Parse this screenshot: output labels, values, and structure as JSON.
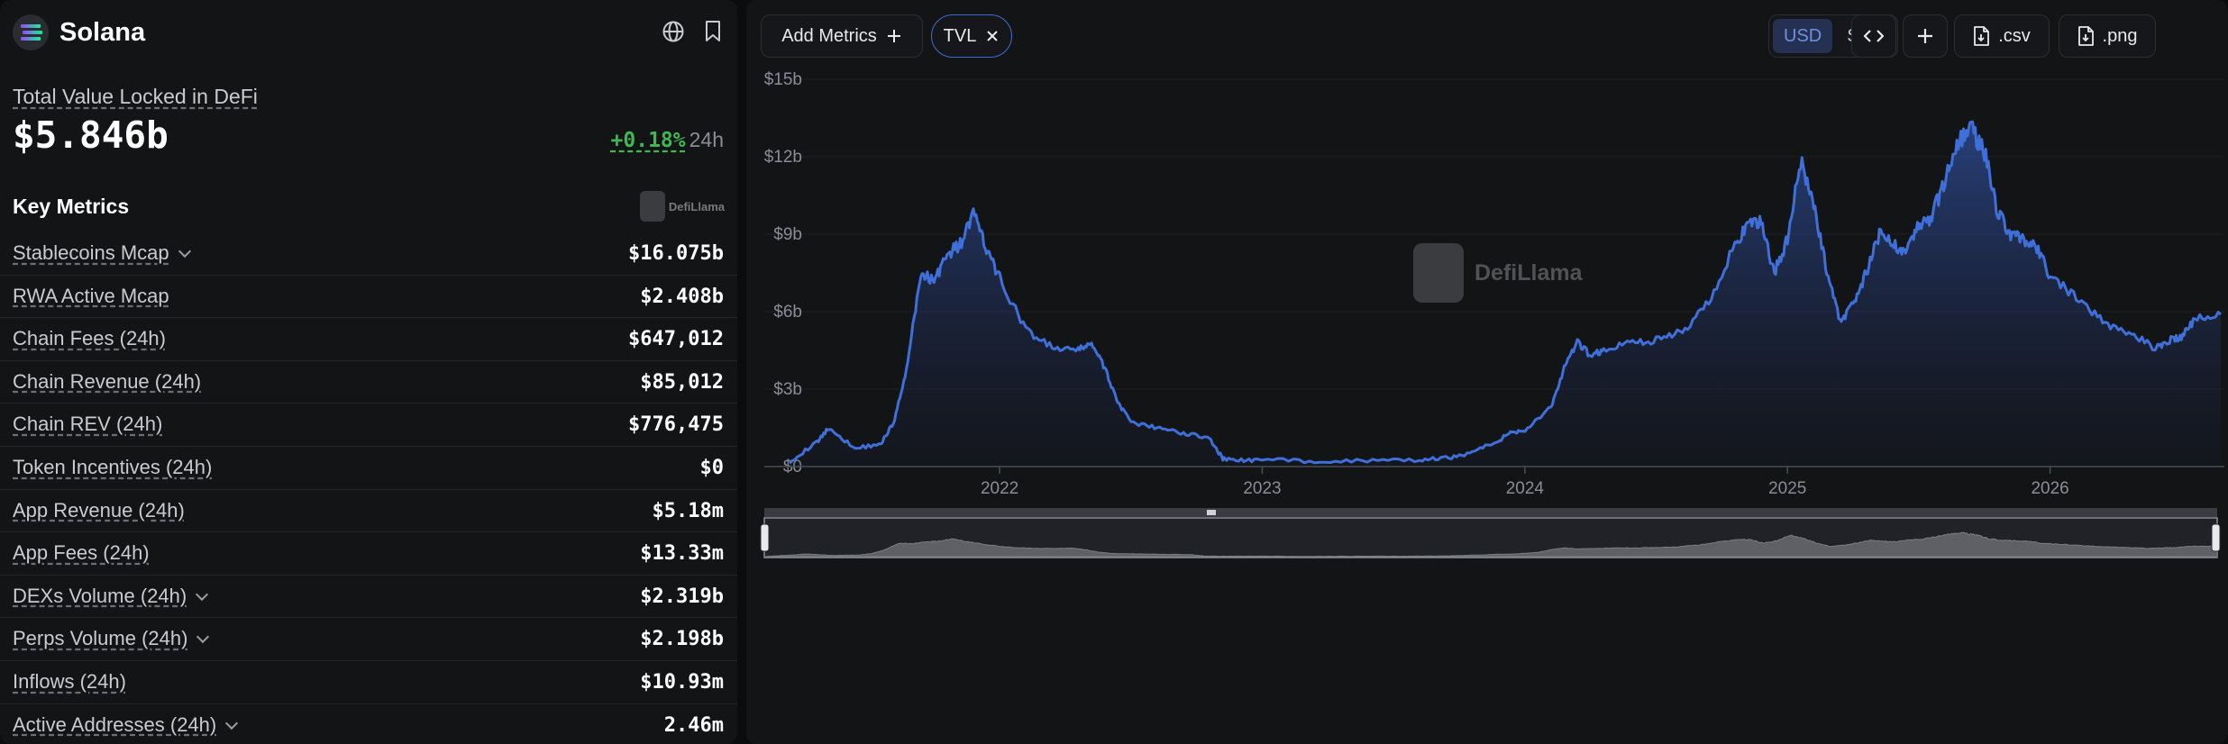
{
  "header": {
    "chain_name": "Solana",
    "globe_icon": "globe-icon",
    "bookmark_icon": "bookmark-icon"
  },
  "tvl": {
    "label": "Total Value Locked in DeFi",
    "value": "$5.846b",
    "change": "+0.18%",
    "period": "24h"
  },
  "key_metrics": {
    "title": "Key Metrics",
    "brand": "DefiLlama",
    "rows": [
      {
        "label": "Stablecoins Mcap",
        "value": "$16.075b",
        "expandable": true
      },
      {
        "label": "RWA Active Mcap",
        "value": "$2.408b",
        "expandable": false
      },
      {
        "label": "Chain Fees (24h)",
        "value": "$647,012",
        "expandable": false
      },
      {
        "label": "Chain Revenue (24h)",
        "value": "$85,012",
        "expandable": false
      },
      {
        "label": "Chain REV (24h)",
        "value": "$776,475",
        "expandable": false
      },
      {
        "label": "Token Incentives (24h)",
        "value": "$0",
        "expandable": false
      },
      {
        "label": "App Revenue (24h)",
        "value": "$5.18m",
        "expandable": false
      },
      {
        "label": "App Fees (24h)",
        "value": "$13.33m",
        "expandable": false
      },
      {
        "label": "DEXs Volume (24h)",
        "value": "$2.319b",
        "expandable": true
      },
      {
        "label": "Perps Volume (24h)",
        "value": "$2.198b",
        "expandable": true
      },
      {
        "label": "Inflows (24h)",
        "value": "$10.93m",
        "expandable": false
      },
      {
        "label": "Active Addresses (24h)",
        "value": "2.46m",
        "expandable": true
      }
    ]
  },
  "toolbar": {
    "add_metrics": "Add Metrics",
    "tvl_chip": "TVL",
    "currency_options": [
      "USD",
      "SOL"
    ],
    "currency_selected": "USD",
    "embed_icon": "code-icon",
    "plus_icon": "plus-icon",
    "csv": ".csv",
    "png": ".png"
  },
  "watermark": "DefiLlama",
  "colors": {
    "line": "#3f6fd8",
    "accent": "#3d6bd6",
    "positive": "#3fb84f",
    "background": "#131416"
  },
  "chart_data": {
    "type": "area",
    "series": [
      {
        "name": "TVL"
      }
    ],
    "y_ticks": [
      "$0",
      "$3b",
      "$6b",
      "$9b",
      "$12b",
      "$15b"
    ],
    "x_ticks": [
      "2022",
      "2023",
      "2024",
      "2025",
      "2026"
    ],
    "ylim": [
      0,
      15
    ],
    "x": [
      2021.2,
      2021.3,
      2021.35,
      2021.45,
      2021.55,
      2021.6,
      2021.65,
      2021.7,
      2021.75,
      2021.8,
      2021.85,
      2021.9,
      2021.95,
      2022.0,
      2022.1,
      2022.2,
      2022.3,
      2022.35,
      2022.4,
      2022.45,
      2022.5,
      2022.6,
      2022.7,
      2022.8,
      2022.85,
      2022.9,
      2023.0,
      2023.2,
      2023.4,
      2023.6,
      2023.7,
      2023.8,
      2023.9,
      2023.95,
      2024.0,
      2024.1,
      2024.15,
      2024.2,
      2024.25,
      2024.3,
      2024.4,
      2024.5,
      2024.6,
      2024.7,
      2024.8,
      2024.85,
      2024.9,
      2024.95,
      2025.0,
      2025.05,
      2025.1,
      2025.15,
      2025.2,
      2025.25,
      2025.3,
      2025.35,
      2025.4,
      2025.45,
      2025.5,
      2025.55,
      2025.6,
      2025.65,
      2025.7,
      2025.75,
      2025.8,
      2025.85,
      2025.9,
      2025.95,
      2026.0,
      2026.1,
      2026.2,
      2026.3,
      2026.4,
      2026.45,
      2026.5,
      2026.55,
      2026.65
    ],
    "values": [
      0.2,
      0.9,
      1.5,
      0.7,
      0.9,
      1.8,
      4.0,
      7.5,
      7.2,
      8.2,
      8.6,
      9.8,
      8.4,
      7.3,
      5.3,
      4.6,
      4.5,
      4.8,
      3.8,
      2.5,
      1.7,
      1.5,
      1.3,
      1.1,
      0.3,
      0.25,
      0.25,
      0.22,
      0.22,
      0.25,
      0.32,
      0.55,
      1.0,
      1.35,
      1.4,
      2.3,
      3.8,
      4.8,
      4.3,
      4.5,
      4.8,
      4.9,
      5.2,
      6.4,
      8.6,
      9.3,
      9.5,
      7.5,
      8.8,
      11.8,
      10.1,
      7.6,
      5.6,
      6.3,
      7.5,
      9.0,
      8.6,
      8.4,
      9.3,
      9.7,
      11.1,
      12.6,
      13.1,
      12.2,
      9.9,
      9.0,
      8.8,
      8.4,
      7.4,
      6.5,
      5.6,
      5.2,
      4.6,
      4.9,
      5.0,
      5.7,
      5.9
    ]
  }
}
